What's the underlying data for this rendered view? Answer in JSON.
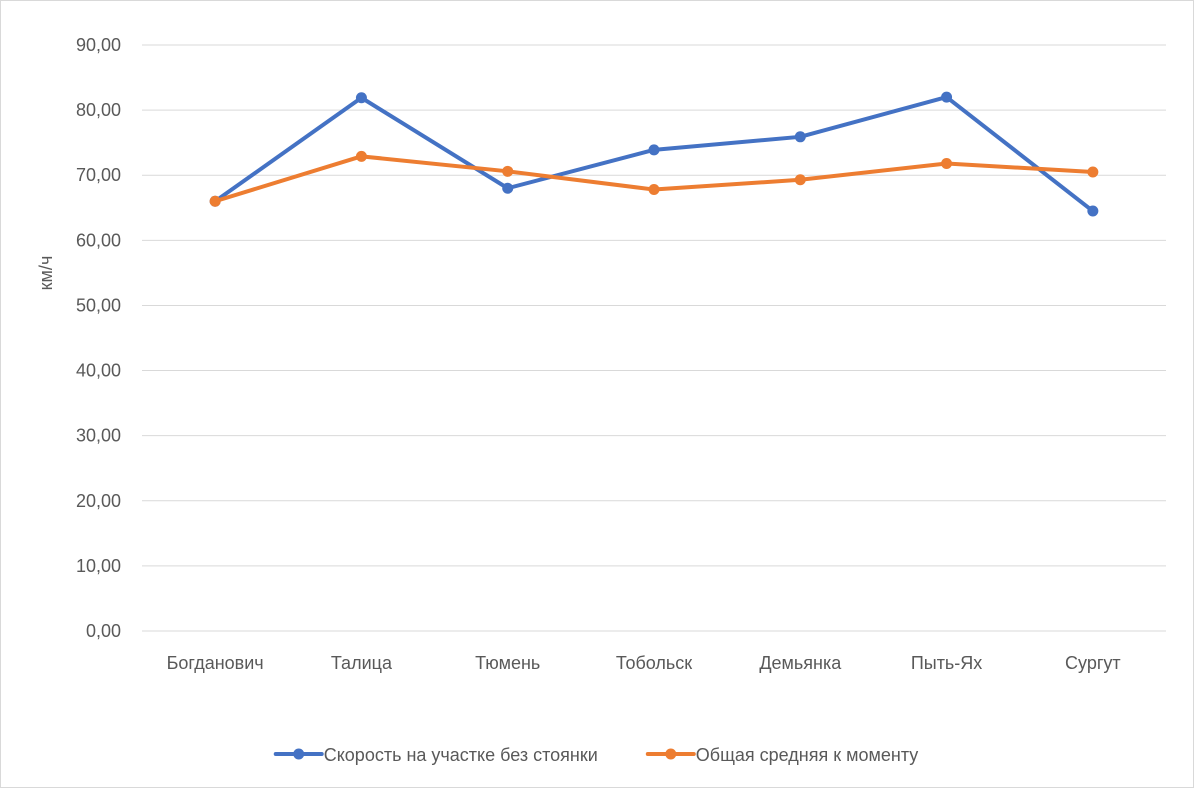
{
  "chart_data": {
    "type": "line",
    "title": "",
    "xlabel": "",
    "ylabel": "км/ч",
    "ylim": [
      0,
      90
    ],
    "ytick_step": 10,
    "ytick_labels": [
      "0,00",
      "10,00",
      "20,00",
      "30,00",
      "40,00",
      "50,00",
      "60,00",
      "70,00",
      "80,00",
      "90,00"
    ],
    "grid": true,
    "legend_position": "bottom",
    "categories": [
      "Богданович",
      "Талица",
      "Тюмень",
      "Тобольск",
      "Демьянка",
      "Пыть-Ях",
      "Сургут"
    ],
    "series": [
      {
        "name": "Скорость на участке без стоянки",
        "color": "#4472c4",
        "values": [
          66.0,
          81.9,
          68.0,
          73.9,
          75.9,
          82.0,
          64.5
        ]
      },
      {
        "name": "Общая средняя к моменту",
        "color": "#ed7d31",
        "values": [
          66.0,
          72.9,
          70.6,
          67.8,
          69.3,
          71.8,
          70.5
        ]
      }
    ]
  }
}
